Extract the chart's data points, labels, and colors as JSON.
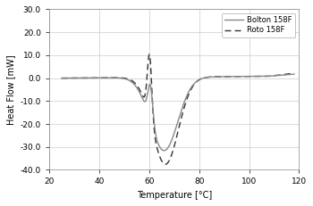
{
  "title": "",
  "xlabel": "Temperature [°C]",
  "ylabel": "Heat Flow [mW]",
  "xlim": [
    20,
    120
  ],
  "ylim": [
    -40,
    30
  ],
  "xticks": [
    20,
    40,
    60,
    80,
    100,
    120
  ],
  "yticks": [
    -40,
    -30,
    -20,
    -10,
    0,
    10,
    20,
    30
  ],
  "legend_bolton": "Bolton 158F",
  "legend_roto": "Roto 158F",
  "bolton_color": "#888888",
  "roto_color": "#333333",
  "background_color": "#ffffff",
  "grid_color": "#cccccc",
  "peak_temp": 60.5,
  "trough_temp": 66.0
}
